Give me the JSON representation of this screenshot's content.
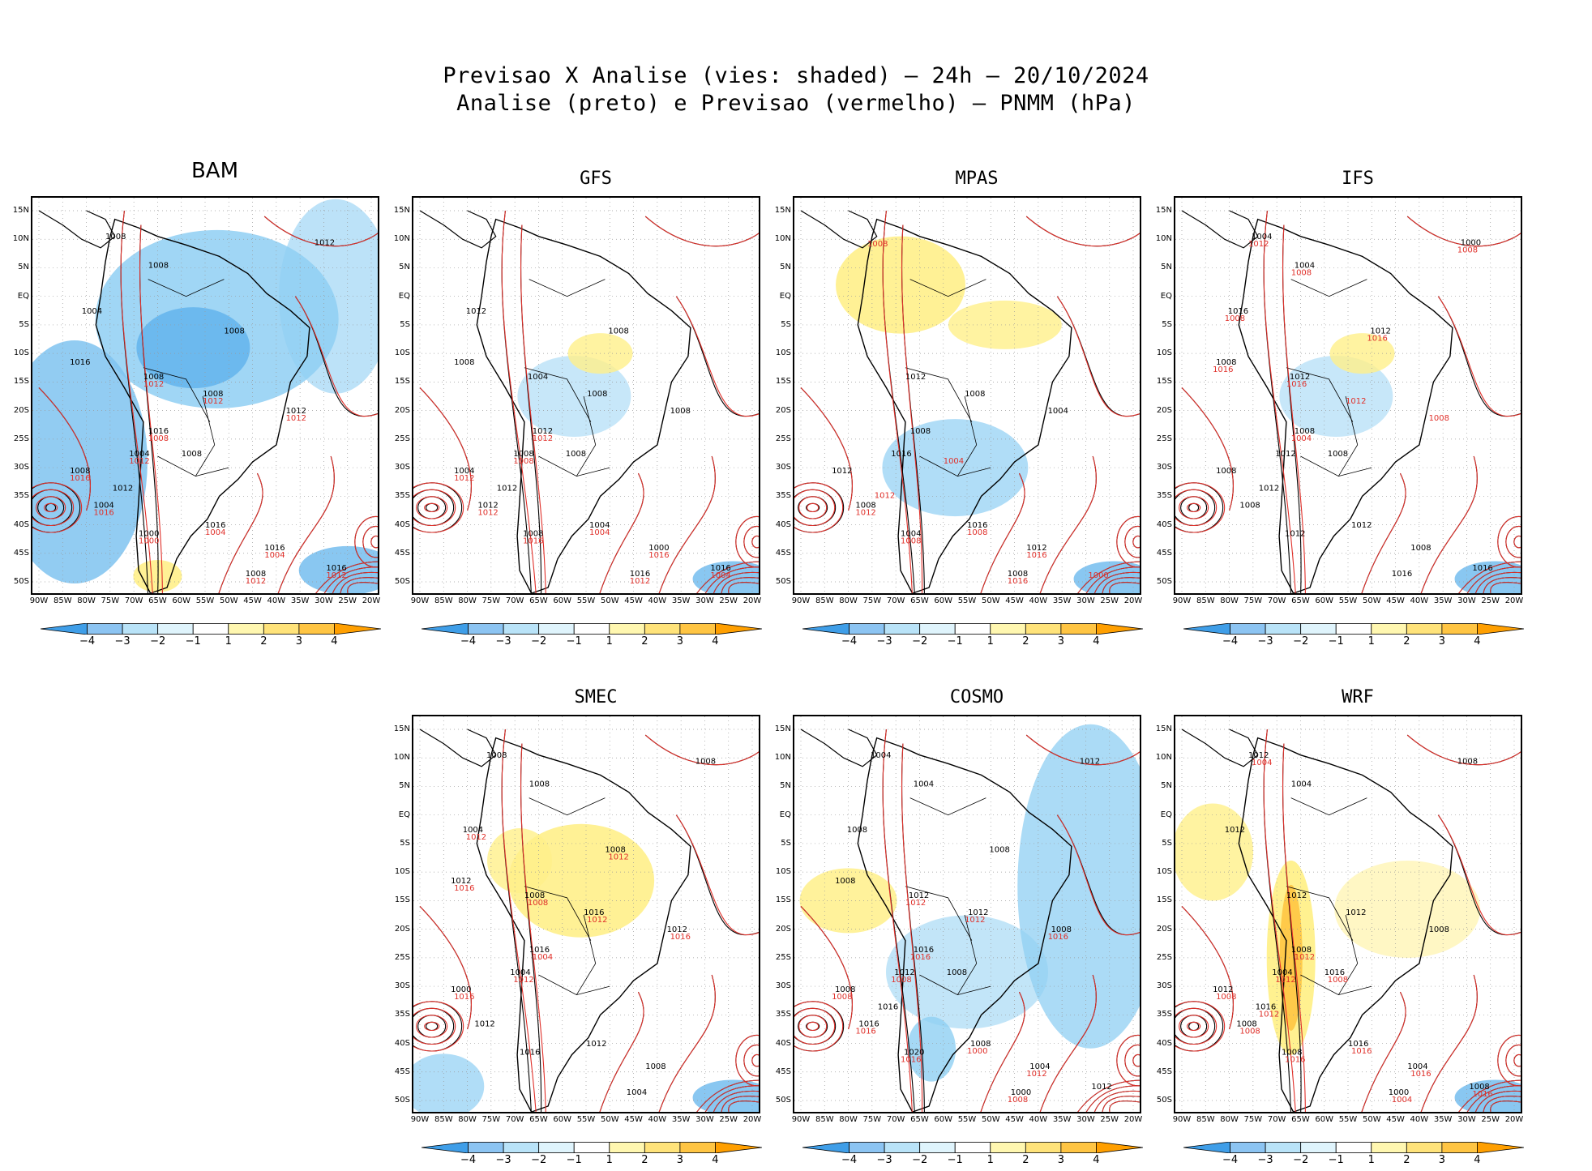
{
  "header": {
    "line1": "Previsao X Analise (vies: shaded) — 24h — 20/10/2024",
    "line2": "Analise (preto) e Previsao (vermelho) — PNMM (hPa)"
  },
  "axes": {
    "lat_labels": [
      "15N",
      "10N",
      "5N",
      "EQ",
      "5S",
      "10S",
      "15S",
      "20S",
      "25S",
      "30S",
      "35S",
      "40S",
      "45S",
      "50S"
    ],
    "lon_labels": [
      "90W",
      "85W",
      "80W",
      "75W",
      "70W",
      "65W",
      "60W",
      "55W",
      "50W",
      "45W",
      "40W",
      "35W",
      "30W",
      "25W",
      "20W"
    ]
  },
  "colorbar": {
    "ticks": [
      "−4",
      "−3",
      "−2",
      "−1",
      "1",
      "2",
      "3",
      "4"
    ],
    "colors": [
      "#3f9ee8",
      "#8cc4f2",
      "#b9e3f8",
      "#dff4fc",
      "#ffffff",
      "#fff7b0",
      "#ffe37a",
      "#ffc543",
      "#ff9f00"
    ]
  },
  "colors": {
    "analysis": "#000000",
    "forecast": "#e0302a",
    "neg": "#8fcff3",
    "pos": "#fff08a"
  },
  "panels": [
    {
      "id": "bam",
      "name": "BAM",
      "row": 0,
      "col": 0,
      "bias": "neg-strong",
      "black_labels": [
        "1008",
        "1012",
        "1008",
        "1004",
        "1008",
        "1016",
        "1008",
        "1008",
        "1012",
        "1016",
        "1004",
        "1008",
        "1004",
        "1000",
        "1016",
        "1016",
        "1008",
        "1016",
        "1012",
        "1008"
      ],
      "red_labels": [
        "1012",
        "1012",
        "1012",
        "1008",
        "1012",
        "1016",
        "1016",
        "1000",
        "1004",
        "1004",
        "1012",
        "1012"
      ]
    },
    {
      "id": "gfs",
      "name": "GFS",
      "row": 0,
      "col": 1,
      "bias": "neutral",
      "black_labels": [
        "1012",
        "1008",
        "1008",
        "1004",
        "1008",
        "1008",
        "1012",
        "1008",
        "1004",
        "1012",
        "1008",
        "1004",
        "1000",
        "1016",
        "1016",
        "1012",
        "1008"
      ],
      "red_labels": [
        "1012",
        "1008",
        "1012",
        "1012",
        "1016",
        "1004",
        "1016",
        "1012",
        "1004"
      ]
    },
    {
      "id": "mpas",
      "name": "MPAS",
      "row": 0,
      "col": 2,
      "bias": "pos-north",
      "black_labels": [
        "1012",
        "1008",
        "1004",
        "1008",
        "1016",
        "1012",
        "1008",
        "1004",
        "1016",
        "1012",
        "1008"
      ],
      "red_labels": [
        "1012",
        "1008",
        "1008",
        "1016",
        "1016",
        "1000",
        "1012",
        "1004",
        "1008"
      ]
    },
    {
      "id": "ifs",
      "name": "IFS",
      "row": 0,
      "col": 3,
      "bias": "neutral",
      "black_labels": [
        "1008",
        "1012",
        "1008",
        "1008",
        "1012",
        "1012",
        "1008",
        "1016",
        "1016",
        "1012",
        "1008",
        "1004",
        "1000",
        "1004",
        "1016",
        "1012",
        "1008",
        "1012"
      ],
      "red_labels": [
        "1012",
        "1008",
        "1008",
        "1008",
        "1016",
        "1016",
        "1016",
        "1012",
        "1008",
        "1004"
      ]
    },
    {
      "id": "smec",
      "name": "SMEC",
      "row": 1,
      "col": 1,
      "bias": "pos-central",
      "black_labels": [
        "1008",
        "1008",
        "1008",
        "1004",
        "1008",
        "1012",
        "1008",
        "1016",
        "1012",
        "1016",
        "1004",
        "1000",
        "1012",
        "1016",
        "1012",
        "1008",
        "1004"
      ],
      "red_labels": [
        "1012",
        "1012",
        "1016",
        "1008",
        "1012",
        "1016",
        "1004",
        "1012",
        "1016"
      ]
    },
    {
      "id": "cosmo",
      "name": "COSMO",
      "row": 1,
      "col": 2,
      "bias": "neg-east",
      "black_labels": [
        "1008",
        "1008",
        "1008",
        "1012",
        "1012",
        "1008",
        "1016",
        "1012",
        "1008",
        "1016",
        "1020",
        "1008",
        "1004",
        "1000",
        "1012",
        "1016",
        "1008",
        "1004",
        "1012",
        "1004"
      ],
      "red_labels": [
        "1012",
        "1012",
        "1016",
        "1016",
        "1008",
        "1008",
        "1016",
        "1016",
        "1000",
        "1012",
        "1008"
      ]
    },
    {
      "id": "wrf",
      "name": "WRF",
      "row": 1,
      "col": 3,
      "bias": "pos-andes",
      "black_labels": [
        "1012",
        "1012",
        "1008",
        "1008",
        "1004",
        "1012",
        "1008",
        "1008",
        "1016",
        "1004",
        "1000",
        "1008",
        "1016",
        "1016",
        "1012",
        "1008",
        "1004",
        "1012"
      ],
      "red_labels": [
        "1012",
        "1012",
        "1008",
        "1008",
        "1016",
        "1016",
        "1016",
        "1004",
        "1016",
        "1012",
        "1008",
        "1004"
      ]
    }
  ]
}
